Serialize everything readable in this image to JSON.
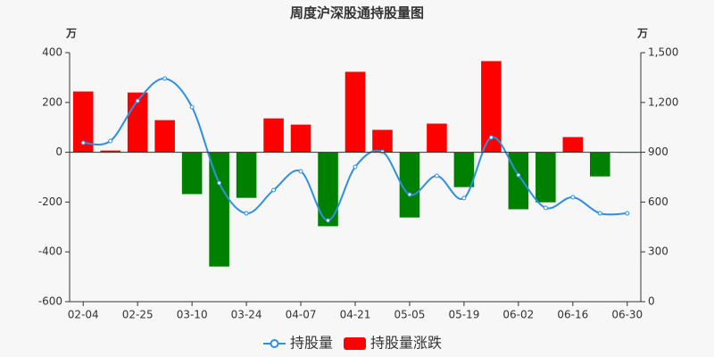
{
  "chart_data": {
    "type": "bar-line",
    "title": "周度沪深股通持股量图",
    "y_unit": "万",
    "y2_unit": "万",
    "categories": [
      "02-04",
      null,
      "02-25",
      null,
      "03-10",
      null,
      "03-24",
      null,
      "04-07",
      null,
      "04-21",
      null,
      "05-05",
      null,
      "05-19",
      null,
      "06-02",
      null,
      "06-16",
      null,
      "06-30"
    ],
    "series": [
      {
        "name": "持股量",
        "type": "line",
        "axis": "y2",
        "color": "#2f8fe0",
        "values": [
          957,
          968,
          1210,
          1344,
          1172,
          715,
          532,
          672,
          785,
          489,
          812,
          903,
          645,
          758,
          624,
          989,
          763,
          565,
          629,
          532,
          532
        ]
      },
      {
        "name": "持股量涨跌",
        "type": "bar",
        "axis": "y",
        "color": "#ff0000",
        "negative_color": "#008000",
        "values": [
          244,
          7,
          240,
          129,
          -168,
          -459,
          -183,
          136,
          111,
          -297,
          323,
          90,
          -262,
          115,
          -140,
          366,
          -229,
          -201,
          61,
          -97,
          -2
        ]
      }
    ],
    "ylim": [
      -600,
      400
    ],
    "yticks": [
      -600,
      -400,
      -200,
      0,
      200,
      400
    ],
    "y2lim": [
      0,
      1500
    ],
    "y2ticks": [
      0,
      300,
      600,
      900,
      {
        "value": 1200,
        "label": "1,200"
      },
      {
        "value": 1500,
        "label": "1,500"
      }
    ],
    "legend": "bottom"
  }
}
